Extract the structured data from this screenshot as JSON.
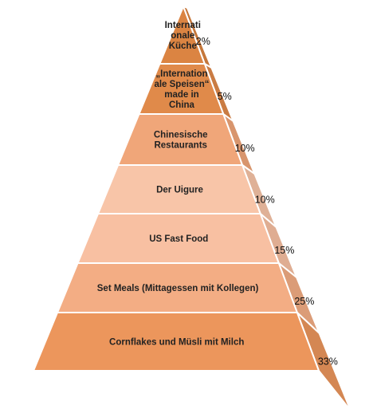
{
  "chart_data": {
    "type": "pyramid",
    "title": "",
    "levels": [
      {
        "label_lines": [
          "Internati",
          "onale",
          "Küche"
        ],
        "value_label": "2%",
        "value": 2,
        "color": "#db8442"
      },
      {
        "label_lines": [
          "„Internation",
          "ale Speisen“",
          "made in",
          "China"
        ],
        "value_label": "5%",
        "value": 5,
        "color": "#e08a4a"
      },
      {
        "label_lines": [
          "Chinesische",
          "Restaurants"
        ],
        "value_label": "10%",
        "value": 10,
        "color": "#f0a679"
      },
      {
        "label_lines": [
          "Der Uigure"
        ],
        "value_label": "10%",
        "value": 10,
        "color": "#f8c5a8"
      },
      {
        "label_lines": [
          "US Fast Food"
        ],
        "value_label": "15%",
        "value": 15,
        "color": "#f8c0a2"
      },
      {
        "label_lines": [
          "Set Meals (Mittagessen mit Kollegen)"
        ],
        "value_label": "25%",
        "value": 25,
        "color": "#f3ad84"
      },
      {
        "label_lines": [
          "Cornflakes und Müsli mit Milch"
        ],
        "value_label": "33%",
        "value": 33,
        "color": "#ec965c"
      }
    ]
  }
}
